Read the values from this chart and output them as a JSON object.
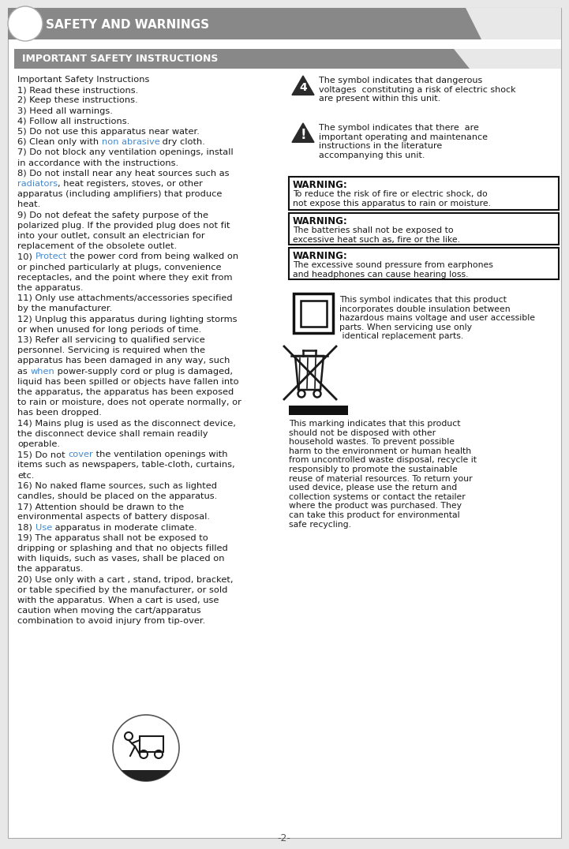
{
  "bg_color": "#e8e8e8",
  "page_bg": "#ffffff",
  "header_bg": "#888888",
  "header_text": "SAFETY AND WARNINGS",
  "header_text_color": "#ffffff",
  "subheader_bg": "#888888",
  "subheader_text": "IMPORTANT SAFETY INSTRUCTIONS",
  "subheader_text_color": "#ffffff",
  "circle_color": "#ffffff",
  "body_text_color": "#1a1a1a",
  "link_color": "#4488cc",
  "warning_border": "#111111",
  "footer_text": "-2-",
  "left_col_lines": [
    {
      "t": "Important Safety Instructions",
      "link": null
    },
    {
      "t": "1) Read these instructions.",
      "link": null
    },
    {
      "t": "2) Keep these instructions.",
      "link": null
    },
    {
      "t": "3) Heed all warnings.",
      "link": null
    },
    {
      "t": "4) Follow all instructions.",
      "link": null
    },
    {
      "t": "5) Do not use this apparatus near water.",
      "link": null
    },
    {
      "t": "6) Clean only with |non abrasive| dry cloth.",
      "link": "non abrasive"
    },
    {
      "t": "7) Do not block any ventilation openings, install",
      "link": null
    },
    {
      "t": "in accordance with the instructions.",
      "link": null
    },
    {
      "t": "8) Do not install near any heat sources such as",
      "link": null
    },
    {
      "t": "|radiators|, heat registers, stoves, or other",
      "link": "radiators"
    },
    {
      "t": "apparatus (including amplifiers) that produce",
      "link": null
    },
    {
      "t": "heat.",
      "link": null
    },
    {
      "t": "9) Do not defeat the safety purpose of the",
      "link": null
    },
    {
      "t": "polarized plug. If the provided plug does not fit",
      "link": null
    },
    {
      "t": "into your outlet, consult an electrician for",
      "link": null
    },
    {
      "t": "replacement of the obsolete outlet.",
      "link": null
    },
    {
      "t": "10) |Protect| the power cord from being walked on",
      "link": "Protect"
    },
    {
      "t": "or pinched particularly at plugs, convenience",
      "link": null
    },
    {
      "t": "receptacles, and the point where they exit from",
      "link": null
    },
    {
      "t": "the apparatus.",
      "link": null
    },
    {
      "t": "11) Only use attachments/accessories specified",
      "link": null
    },
    {
      "t": "by the manufacturer.",
      "link": null
    },
    {
      "t": "12) Unplug this apparatus during lighting storms",
      "link": null
    },
    {
      "t": "or when unused for long periods of time.",
      "link": null
    },
    {
      "t": "13) Refer all servicing to qualified service",
      "link": null
    },
    {
      "t": "personnel. Servicing is required when the",
      "link": null
    },
    {
      "t": "apparatus has been damaged in any way, such",
      "link": null
    },
    {
      "t": "as |when| power-supply cord or plug is damaged,",
      "link": "when"
    },
    {
      "t": "liquid has been spilled or objects have fallen into",
      "link": null
    },
    {
      "t": "the apparatus, the apparatus has been exposed",
      "link": null
    },
    {
      "t": "to rain or moisture, does not operate normally, or",
      "link": null
    },
    {
      "t": "has been dropped.",
      "link": null
    },
    {
      "t": "14) Mains plug is used as the disconnect device,",
      "link": null
    },
    {
      "t": "the disconnect device shall remain readily",
      "link": null
    },
    {
      "t": "operable.",
      "link": null
    },
    {
      "t": "15) Do not |cover| the ventilation openings with",
      "link": "cover"
    },
    {
      "t": "items such as newspapers, table-cloth, curtains,",
      "link": null
    },
    {
      "t": "etc.",
      "link": null
    },
    {
      "t": "16) No naked flame sources, such as lighted",
      "link": null
    },
    {
      "t": "candles, should be placed on the apparatus.",
      "link": null
    },
    {
      "t": "17) Attention should be drawn to the",
      "link": null
    },
    {
      "t": "environmental aspects of battery disposal.",
      "link": null
    },
    {
      "t": "18) |Use| apparatus in moderate climate.",
      "link": "Use"
    },
    {
      "t": "19) The apparatus shall not be exposed to",
      "link": null
    },
    {
      "t": "dripping or splashing and that no objects filled",
      "link": null
    },
    {
      "t": "with liquids, such as vases, shall be placed on",
      "link": null
    },
    {
      "t": "the apparatus.",
      "link": null
    },
    {
      "t": "20) Use only with a cart , stand, tripod, bracket,",
      "link": null
    },
    {
      "t": "or table specified by the manufacturer, or sold",
      "link": null
    },
    {
      "t": "with the apparatus. When a cart is used, use",
      "link": null
    },
    {
      "t": "caution when moving the cart/apparatus",
      "link": null
    },
    {
      "t": "combination to avoid injury from tip-over.",
      "link": null
    }
  ],
  "warn1_bold": "WARNING:",
  "warn1_body": "To reduce the risk of fire or electric shock, do\nnot expose this apparatus to rain or moisture.",
  "warn2_bold": "WARNING:",
  "warn2_body": "The batteries shall not be exposed to\nexcessive heat such as, fire or the like.",
  "warn3_bold": "WARNING:",
  "warn3_body": "The excessive sound pressure from earphones\nand headphones can cause hearing loss.",
  "sym1_text": "The symbol indicates that dangerous\nvoltages  constituting a risk of electric shock\nare present within this unit.",
  "sym2_text": "The symbol indicates that there  are\nimportant operating and maintenance\ninstructions in the literature\naccompanying this unit.",
  "dbl_ins_text": "This symbol indicates that this product\nincorporates double insulation between\nhazardous mains voltage and user accessible\nparts. When servicing use only\n identical replacement parts.",
  "recycle_text": "This marking indicates that this product\nshould not be disposed with other\nhousehold wastes. To prevent possible\nharm to the environment or human health\nfrom uncontrolled waste disposal, recycle it\nresponsibly to promote the sustainable\nreuse of material resources. To return your\nused device, please use the return and\ncollection systems or contact the retailer\nwhere the product was purchased. They\ncan take this product for environmental\nsafe recycling."
}
